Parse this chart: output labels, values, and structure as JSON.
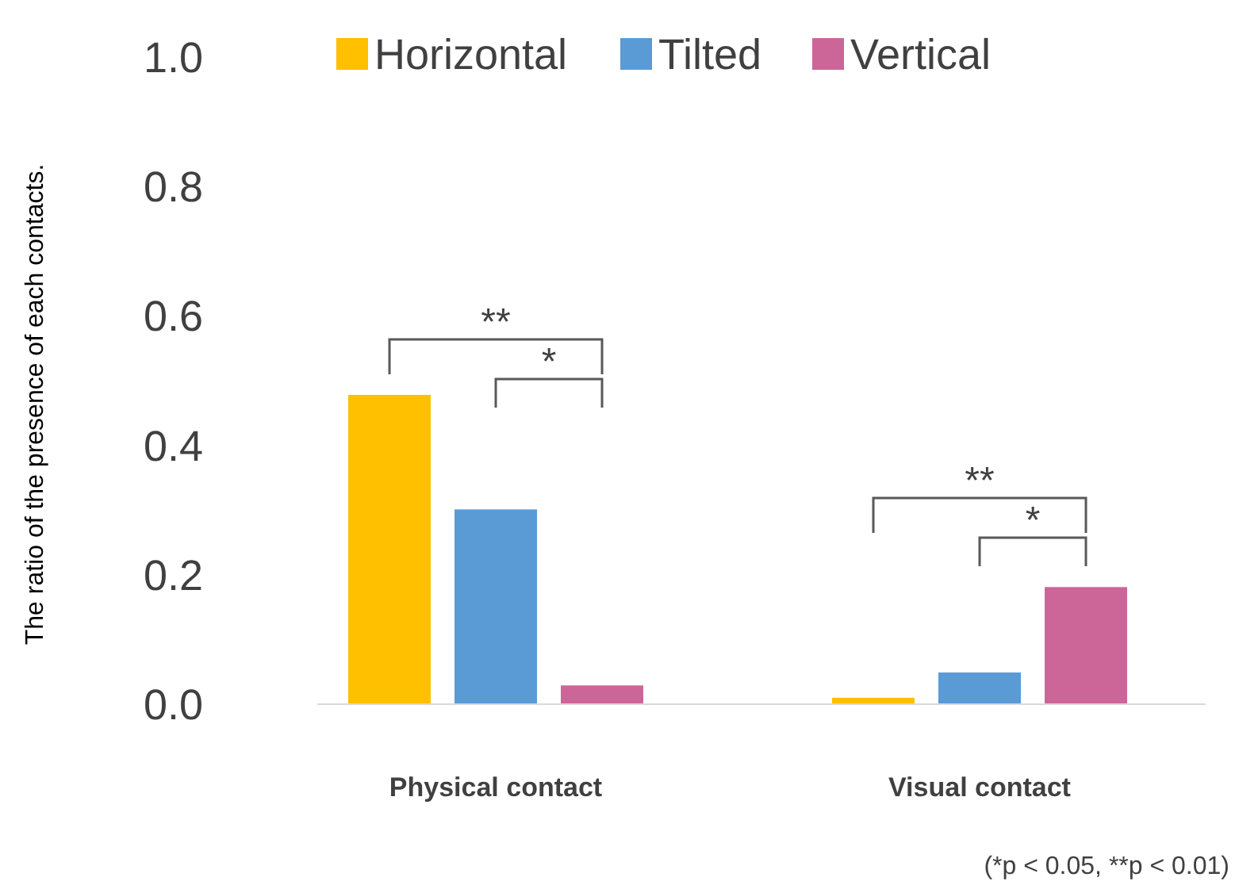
{
  "chart_data": {
    "type": "bar",
    "ylabel": "The ratio of the presence of each contacts.",
    "categories": [
      "Physical contact",
      "Visual contact"
    ],
    "series": [
      {
        "name": "Horizontal",
        "color": "#ffc000",
        "values": [
          0.478,
          0.01
        ]
      },
      {
        "name": "Tilted",
        "color": "#5b9bd5",
        "values": [
          0.301,
          0.049
        ]
      },
      {
        "name": "Vertical",
        "color": "#cc6699",
        "values": [
          0.029,
          0.181
        ]
      }
    ],
    "ylim": [
      0,
      1.0
    ],
    "yticks": [
      {
        "value": 0,
        "label": "0.0"
      },
      {
        "value": 0.2,
        "label": "0.2"
      },
      {
        "value": 0.4,
        "label": "0.4"
      },
      {
        "value": 0.6,
        "label": "0.6"
      },
      {
        "value": 0.8,
        "label": "0.8"
      },
      {
        "value": 1.0,
        "label": "1.0"
      }
    ],
    "grid": false,
    "legend": "top",
    "annotations": [
      "**",
      "*",
      "**",
      "*",
      "(*p < 0.05, **p < 0.01)"
    ]
  }
}
